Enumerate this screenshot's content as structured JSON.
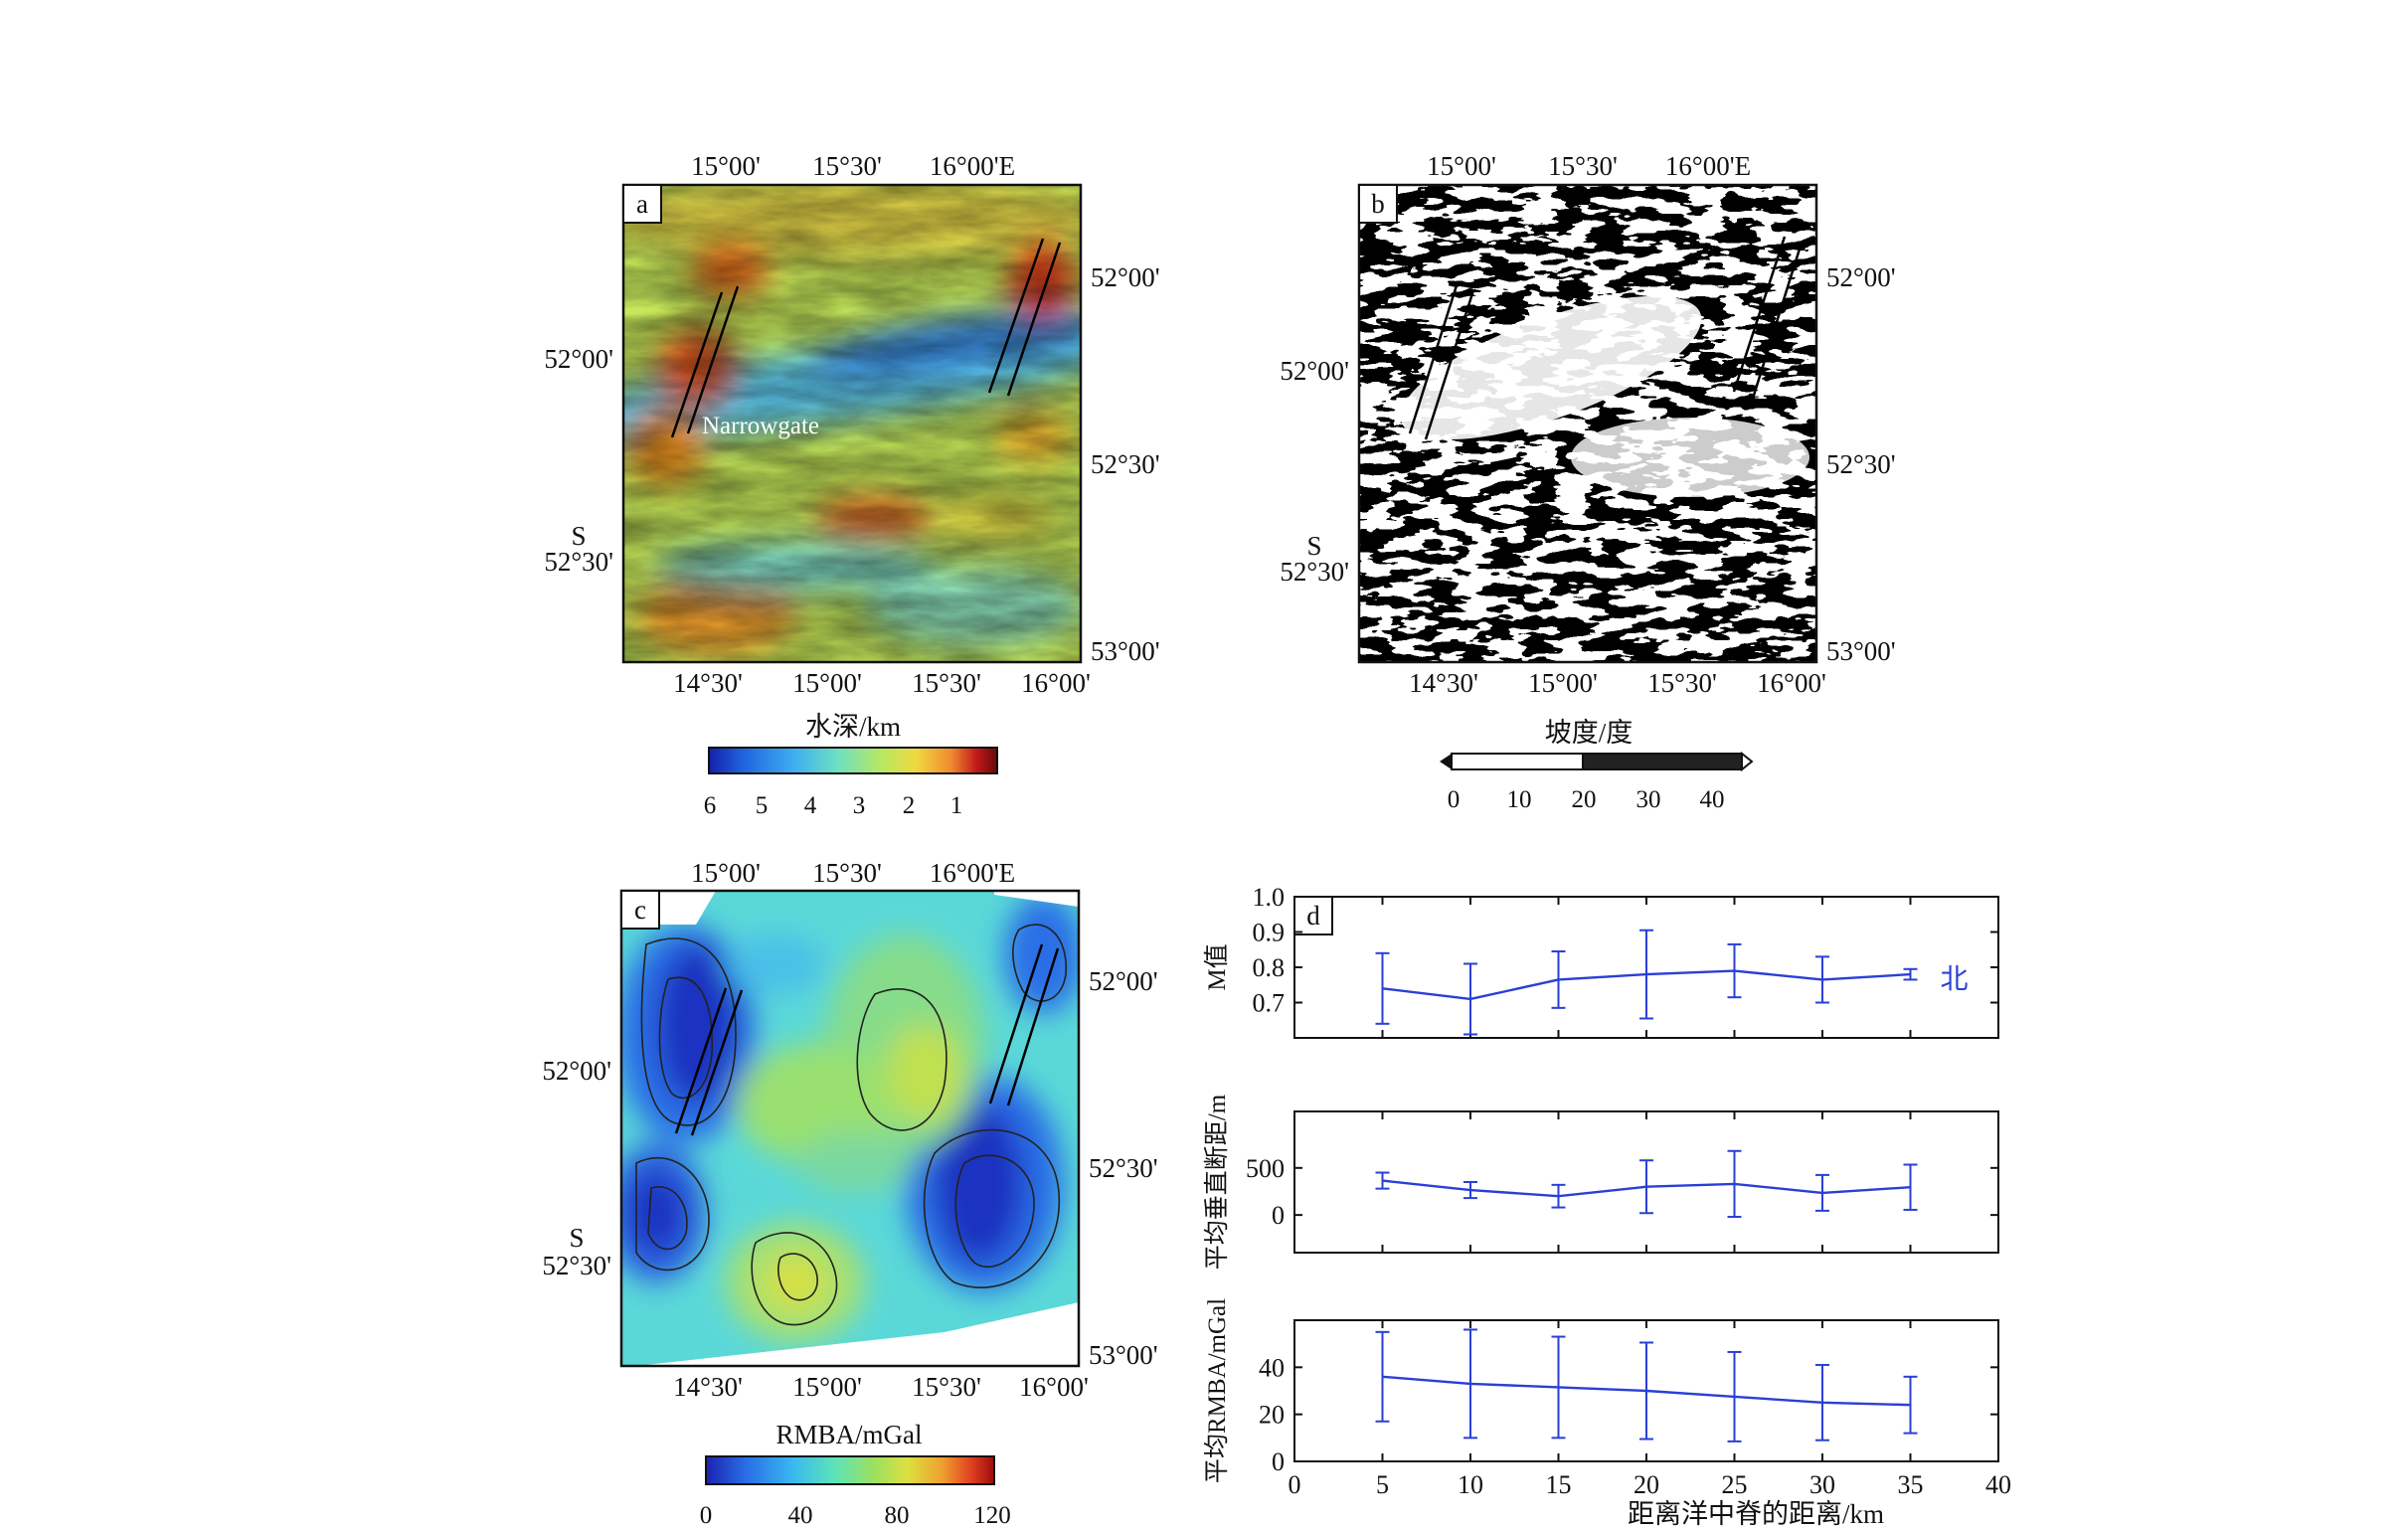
{
  "panel_a": {
    "letter": "a",
    "top_ticks": [
      "15°00'",
      "15°30'",
      "16°00'E"
    ],
    "bottom_ticks": [
      "14°30'",
      "15°00'",
      "15°30'",
      "16°00'"
    ],
    "left_ticks": [
      "52°00'",
      "S",
      "52°30'"
    ],
    "right_ticks": [
      "52°00'",
      "52°30'",
      "53°00'"
    ],
    "annotation": "Narrowgate",
    "colorbar_title": "水深/km",
    "colorbar_ticks": [
      "6",
      "5",
      "4",
      "3",
      "2",
      "1"
    ]
  },
  "panel_b": {
    "letter": "b",
    "top_ticks": [
      "15°00'",
      "15°30'",
      "16°00'E"
    ],
    "bottom_ticks": [
      "14°30'",
      "15°00'",
      "15°30'",
      "16°00'"
    ],
    "left_ticks": [
      "52°00'",
      "S",
      "52°30'"
    ],
    "right_ticks": [
      "52°00'",
      "52°30'",
      "53°00'"
    ],
    "colorbar_title": "坡度/度",
    "colorbar_ticks": [
      "0",
      "10",
      "20",
      "30",
      "40"
    ]
  },
  "panel_c": {
    "letter": "c",
    "top_ticks": [
      "15°00'",
      "15°30'",
      "16°00'E"
    ],
    "bottom_ticks": [
      "14°30'",
      "15°00'",
      "15°30'",
      "16°00'"
    ],
    "left_ticks": [
      "52°00'",
      "S",
      "52°30'"
    ],
    "right_ticks": [
      "52°00'",
      "52°30'",
      "53°00'"
    ],
    "colorbar_title": "RMBA/mGal",
    "colorbar_ticks": [
      "0",
      "40",
      "80",
      "120"
    ]
  },
  "colors": {
    "series": "#2a3fd6",
    "axis": "#111111",
    "bathy_ramp": [
      "#1520a8",
      "#1f64e0",
      "#3fb0f0",
      "#6fe0c0",
      "#b8e860",
      "#f0d840",
      "#f08a30",
      "#c01818",
      "#6a0808"
    ],
    "rmba_ramp": [
      "#1a24b0",
      "#2a6ee6",
      "#38b8f0",
      "#5ee4b8",
      "#9be060",
      "#dde040",
      "#f0a030",
      "#e04020",
      "#9a0c0c"
    ]
  },
  "chart_data": [
    {
      "type": "line",
      "panel": "d",
      "ylabel": "M值",
      "annotation": "北",
      "ylim": [
        0.6,
        1.0
      ],
      "yticks": [
        "1.0",
        "0.9",
        "0.8",
        "0.7"
      ],
      "x": [
        5,
        10,
        15,
        20,
        25,
        30,
        35
      ],
      "values": [
        0.74,
        0.71,
        0.765,
        0.78,
        0.79,
        0.765,
        0.78
      ],
      "errors": [
        0.1,
        0.1,
        0.08,
        0.125,
        0.075,
        0.065,
        0.015
      ],
      "xlim": [
        0,
        40
      ]
    },
    {
      "type": "line",
      "panel": "d",
      "ylabel": "平均垂直断距/m",
      "ylim": [
        -400,
        1100
      ],
      "yticks": [
        "500",
        "0"
      ],
      "x": [
        5,
        10,
        15,
        20,
        25,
        30,
        35
      ],
      "values": [
        365,
        265,
        200,
        300,
        330,
        235,
        295
      ],
      "errors": [
        85,
        85,
        120,
        280,
        350,
        190,
        240
      ],
      "xlim": [
        0,
        40
      ]
    },
    {
      "type": "line",
      "panel": "d",
      "ylabel": "平均RMBA/mGal",
      "xlabel": "距离洋中脊的距离/km",
      "ylim": [
        0,
        60
      ],
      "yticks": [
        "40",
        "20",
        "0"
      ],
      "xticks": [
        "0",
        "5",
        "10",
        "15",
        "20",
        "25",
        "30",
        "35",
        "40"
      ],
      "x": [
        5,
        10,
        15,
        20,
        25,
        30,
        35
      ],
      "values": [
        36,
        33,
        31.5,
        30,
        27.5,
        25,
        24
      ],
      "errors": [
        19,
        23,
        21.5,
        20.5,
        19,
        16,
        12
      ],
      "xlim": [
        0,
        40
      ]
    }
  ]
}
